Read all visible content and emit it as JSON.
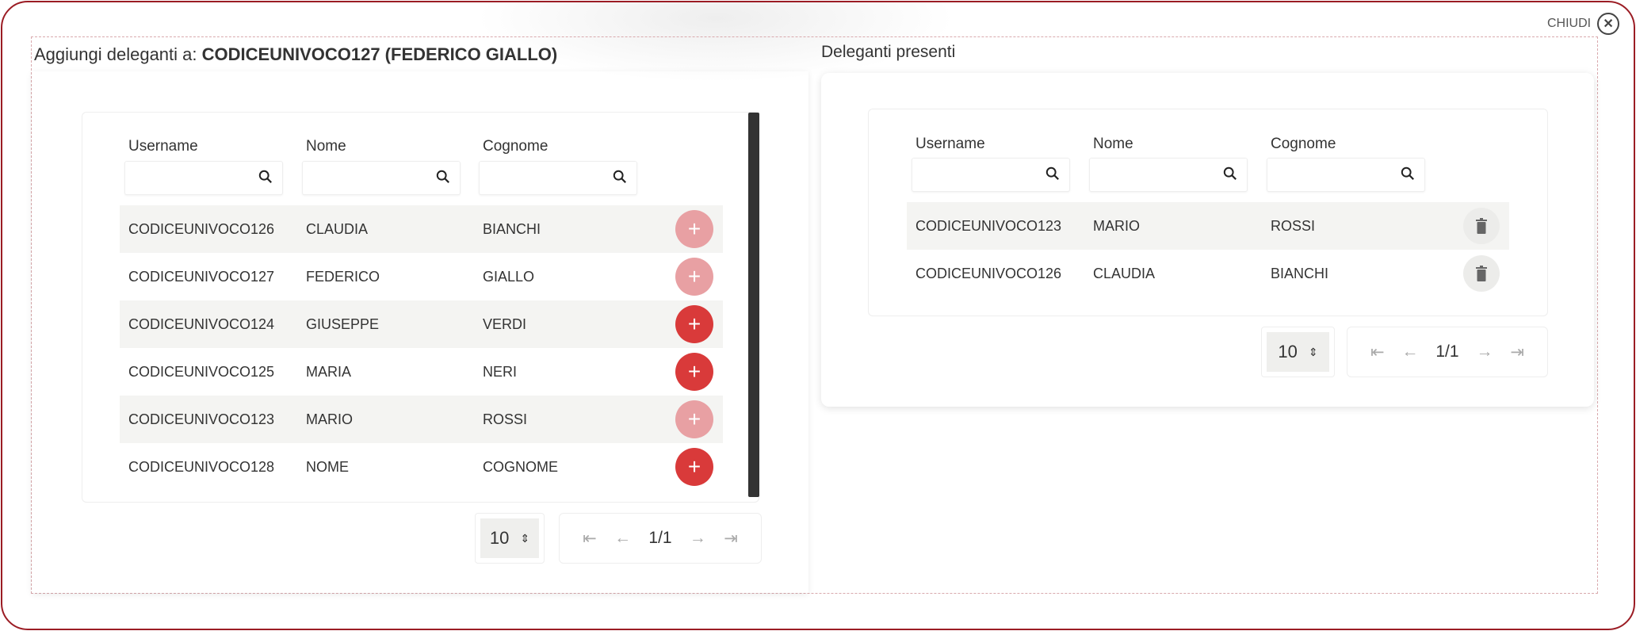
{
  "close_label": "CHIUDI",
  "left": {
    "title_prefix": "Aggiungi deleganti a:",
    "title_bold": "CODICEUNIVOCO127 (FEDERICO GIALLO)",
    "headers": [
      "Username",
      "Nome",
      "Cognome"
    ],
    "rows": [
      {
        "username": "CODICEUNIVOCO126",
        "nome": "CLAUDIA",
        "cognome": "BIANCHI",
        "enabled": false
      },
      {
        "username": "CODICEUNIVOCO127",
        "nome": "FEDERICO",
        "cognome": "GIALLO",
        "enabled": false
      },
      {
        "username": "CODICEUNIVOCO124",
        "nome": "GIUSEPPE",
        "cognome": "VERDI",
        "enabled": true
      },
      {
        "username": "CODICEUNIVOCO125",
        "nome": "MARIA",
        "cognome": "NERI",
        "enabled": true
      },
      {
        "username": "CODICEUNIVOCO123",
        "nome": "MARIO",
        "cognome": "ROSSI",
        "enabled": false
      },
      {
        "username": "CODICEUNIVOCO128",
        "nome": "NOME",
        "cognome": "COGNOME",
        "enabled": true
      }
    ],
    "page_size": "10",
    "page": "1/1"
  },
  "right": {
    "title": "Deleganti presenti",
    "headers": [
      "Username",
      "Nome",
      "Cognome"
    ],
    "rows": [
      {
        "username": "CODICEUNIVOCO123",
        "nome": "MARIO",
        "cognome": "ROSSI"
      },
      {
        "username": "CODICEUNIVOCO126",
        "nome": "CLAUDIA",
        "cognome": "BIANCHI"
      }
    ],
    "page_size": "10",
    "page": "1/1"
  },
  "colors": {
    "border": "#9b1c24",
    "add_active": "#d93a3a",
    "add_disabled": "#e8a0a3"
  }
}
